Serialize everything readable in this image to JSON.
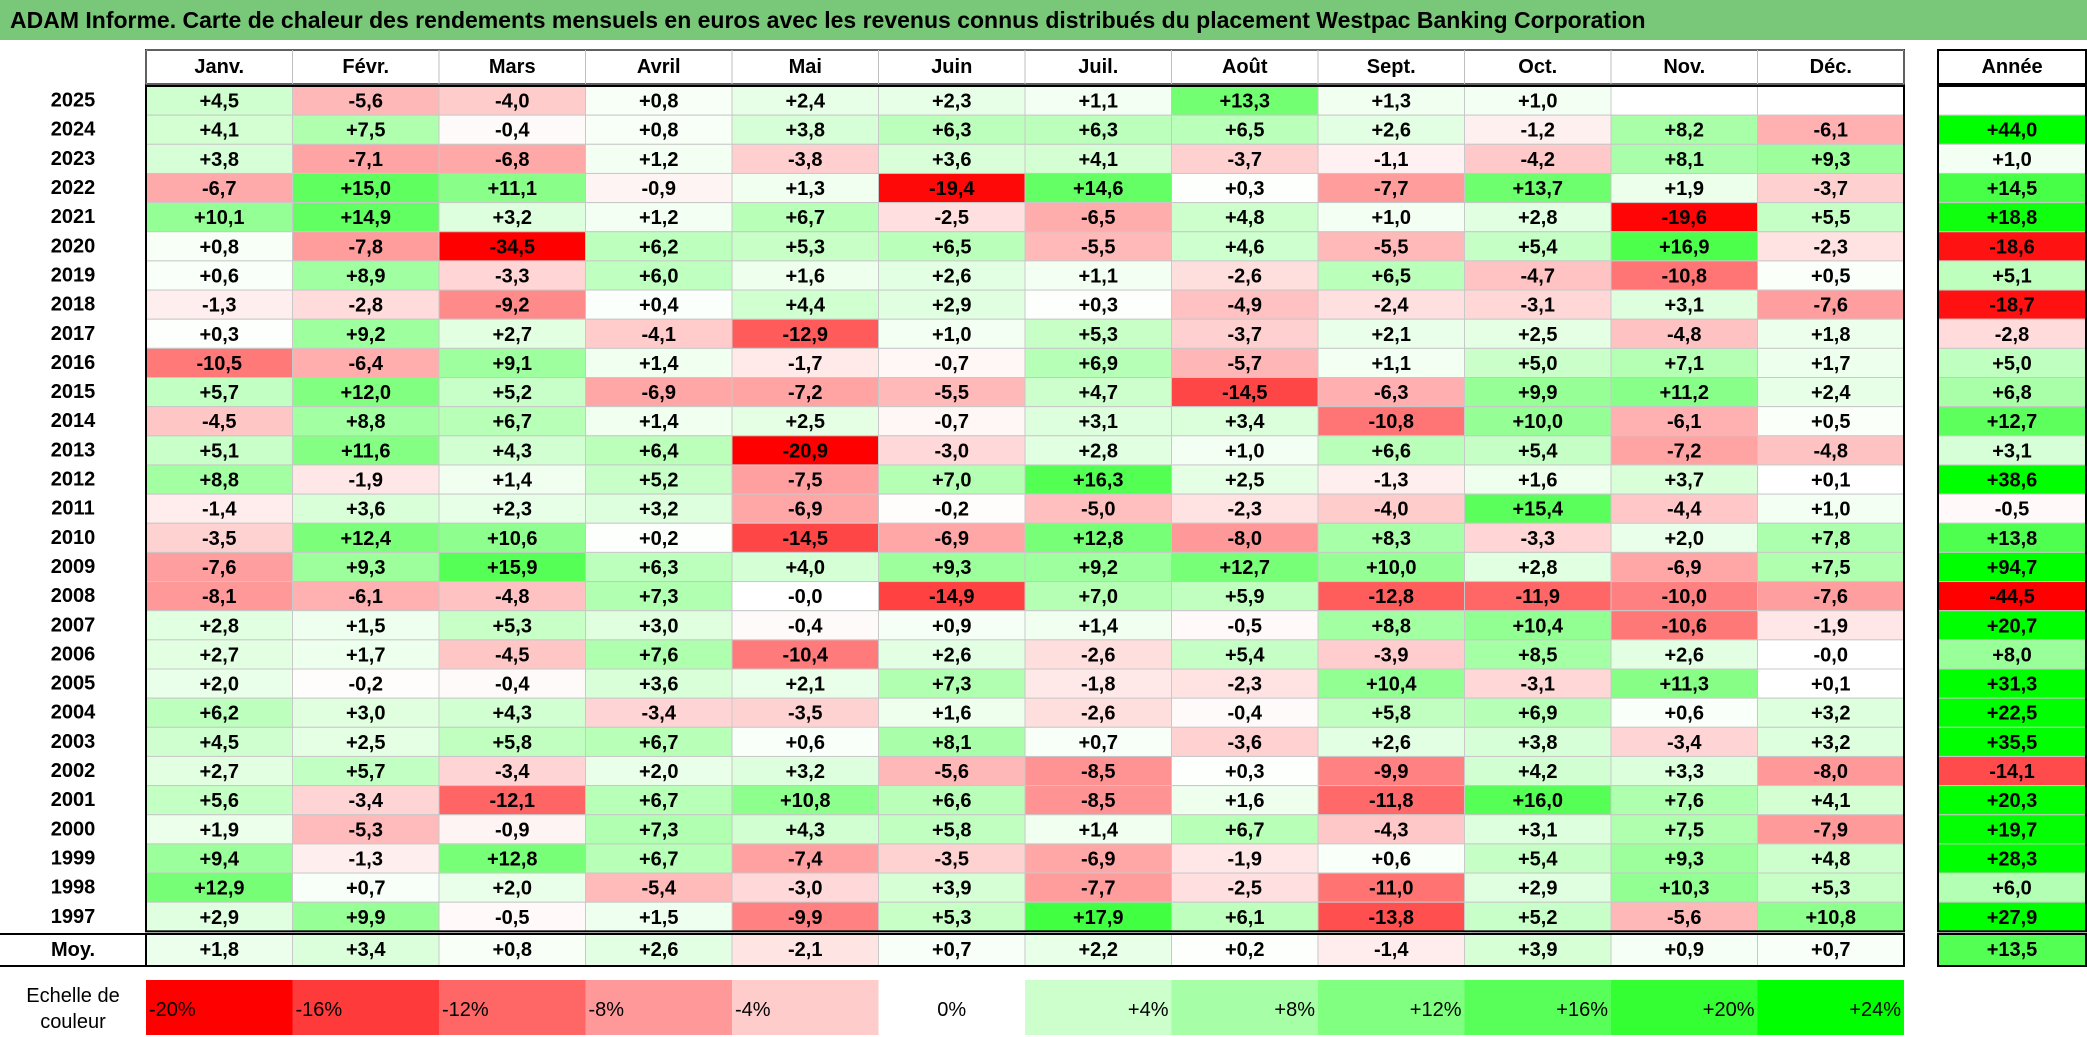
{
  "title": "ADAM Informe. Carte de chaleur des rendements mensuels en euros avec les revenus connus distribués du placement Westpac Banking Corporation",
  "chart_data": {
    "type": "heatmap",
    "columns": [
      "Janv.",
      "Févr.",
      "Mars",
      "Avril",
      "Mai",
      "Juin",
      "Juil.",
      "Août",
      "Sept.",
      "Oct.",
      "Nov.",
      "Déc."
    ],
    "annual_header": "Année",
    "rows": [
      {
        "year": "2025",
        "values": [
          "+4,5",
          "-5,6",
          "-4,0",
          "+0,8",
          "+2,4",
          "+2,3",
          "+1,1",
          "+13,3",
          "+1,3",
          "+1,0",
          "",
          ""
        ],
        "annual": ""
      },
      {
        "year": "2024",
        "values": [
          "+4,1",
          "+7,5",
          "-0,4",
          "+0,8",
          "+3,8",
          "+6,3",
          "+6,3",
          "+6,5",
          "+2,6",
          "-1,2",
          "+8,2",
          "-6,1"
        ],
        "annual": "+44,0"
      },
      {
        "year": "2023",
        "values": [
          "+3,8",
          "-7,1",
          "-6,8",
          "+1,2",
          "-3,8",
          "+3,6",
          "+4,1",
          "-3,7",
          "-1,1",
          "-4,2",
          "+8,1",
          "+9,3"
        ],
        "annual": "+1,0"
      },
      {
        "year": "2022",
        "values": [
          "-6,7",
          "+15,0",
          "+11,1",
          "-0,9",
          "+1,3",
          "-19,4",
          "+14,6",
          "+0,3",
          "-7,7",
          "+13,7",
          "+1,9",
          "-3,7"
        ],
        "annual": "+14,5"
      },
      {
        "year": "2021",
        "values": [
          "+10,1",
          "+14,9",
          "+3,2",
          "+1,2",
          "+6,7",
          "-2,5",
          "-6,5",
          "+4,8",
          "+1,0",
          "+2,8",
          "-19,6",
          "+5,5"
        ],
        "annual": "+18,8"
      },
      {
        "year": "2020",
        "values": [
          "+0,8",
          "-7,8",
          "-34,5",
          "+6,2",
          "+5,3",
          "+6,5",
          "-5,5",
          "+4,6",
          "-5,5",
          "+5,4",
          "+16,9",
          "-2,3"
        ],
        "annual": "-18,6"
      },
      {
        "year": "2019",
        "values": [
          "+0,6",
          "+8,9",
          "-3,3",
          "+6,0",
          "+1,6",
          "+2,6",
          "+1,1",
          "-2,6",
          "+6,5",
          "-4,7",
          "-10,8",
          "+0,5"
        ],
        "annual": "+5,1"
      },
      {
        "year": "2018",
        "values": [
          "-1,3",
          "-2,8",
          "-9,2",
          "+0,4",
          "+4,4",
          "+2,9",
          "+0,3",
          "-4,9",
          "-2,4",
          "-3,1",
          "+3,1",
          "-7,6"
        ],
        "annual": "-18,7"
      },
      {
        "year": "2017",
        "values": [
          "+0,3",
          "+9,2",
          "+2,7",
          "-4,1",
          "-12,9",
          "+1,0",
          "+5,3",
          "-3,7",
          "+2,1",
          "+2,5",
          "-4,8",
          "+1,8"
        ],
        "annual": "-2,8"
      },
      {
        "year": "2016",
        "values": [
          "-10,5",
          "-6,4",
          "+9,1",
          "+1,4",
          "-1,7",
          "-0,7",
          "+6,9",
          "-5,7",
          "+1,1",
          "+5,0",
          "+7,1",
          "+1,7"
        ],
        "annual": "+5,0"
      },
      {
        "year": "2015",
        "values": [
          "+5,7",
          "+12,0",
          "+5,2",
          "-6,9",
          "-7,2",
          "-5,5",
          "+4,7",
          "-14,5",
          "-6,3",
          "+9,9",
          "+11,2",
          "+2,4"
        ],
        "annual": "+6,8"
      },
      {
        "year": "2014",
        "values": [
          "-4,5",
          "+8,8",
          "+6,7",
          "+1,4",
          "+2,5",
          "-0,7",
          "+3,1",
          "+3,4",
          "-10,8",
          "+10,0",
          "-6,1",
          "+0,5"
        ],
        "annual": "+12,7"
      },
      {
        "year": "2013",
        "values": [
          "+5,1",
          "+11,6",
          "+4,3",
          "+6,4",
          "-20,9",
          "-3,0",
          "+2,8",
          "+1,0",
          "+6,6",
          "+5,4",
          "-7,2",
          "-4,8"
        ],
        "annual": "+3,1"
      },
      {
        "year": "2012",
        "values": [
          "+8,8",
          "-1,9",
          "+1,4",
          "+5,2",
          "-7,5",
          "+7,0",
          "+16,3",
          "+2,5",
          "-1,3",
          "+1,6",
          "+3,7",
          "+0,1"
        ],
        "annual": "+38,6"
      },
      {
        "year": "2011",
        "values": [
          "-1,4",
          "+3,6",
          "+2,3",
          "+3,2",
          "-6,9",
          "-0,2",
          "-5,0",
          "-2,3",
          "-4,0",
          "+15,4",
          "-4,4",
          "+1,0"
        ],
        "annual": "-0,5"
      },
      {
        "year": "2010",
        "values": [
          "-3,5",
          "+12,4",
          "+10,6",
          "+0,2",
          "-14,5",
          "-6,9",
          "+12,8",
          "-8,0",
          "+8,3",
          "-3,3",
          "+2,0",
          "+7,8"
        ],
        "annual": "+13,8"
      },
      {
        "year": "2009",
        "values": [
          "-7,6",
          "+9,3",
          "+15,9",
          "+6,3",
          "+4,0",
          "+9,3",
          "+9,2",
          "+12,7",
          "+10,0",
          "+2,8",
          "-6,9",
          "+7,5"
        ],
        "annual": "+94,7"
      },
      {
        "year": "2008",
        "values": [
          "-8,1",
          "-6,1",
          "-4,8",
          "+7,3",
          "-0,0",
          "-14,9",
          "+7,0",
          "+5,9",
          "-12,8",
          "-11,9",
          "-10,0",
          "-7,6"
        ],
        "annual": "-44,5"
      },
      {
        "year": "2007",
        "values": [
          "+2,8",
          "+1,5",
          "+5,3",
          "+3,0",
          "-0,4",
          "+0,9",
          "+1,4",
          "-0,5",
          "+8,8",
          "+10,4",
          "-10,6",
          "-1,9"
        ],
        "annual": "+20,7"
      },
      {
        "year": "2006",
        "values": [
          "+2,7",
          "+1,7",
          "-4,5",
          "+7,6",
          "-10,4",
          "+2,6",
          "-2,6",
          "+5,4",
          "-3,9",
          "+8,5",
          "+2,6",
          "-0,0"
        ],
        "annual": "+8,0"
      },
      {
        "year": "2005",
        "values": [
          "+2,0",
          "-0,2",
          "-0,4",
          "+3,6",
          "+2,1",
          "+7,3",
          "-1,8",
          "-2,3",
          "+10,4",
          "-3,1",
          "+11,3",
          "+0,1"
        ],
        "annual": "+31,3"
      },
      {
        "year": "2004",
        "values": [
          "+6,2",
          "+3,0",
          "+4,3",
          "-3,4",
          "-3,5",
          "+1,6",
          "-2,6",
          "-0,4",
          "+5,8",
          "+6,9",
          "+0,6",
          "+3,2"
        ],
        "annual": "+22,5"
      },
      {
        "year": "2003",
        "values": [
          "+4,5",
          "+2,5",
          "+5,8",
          "+6,7",
          "+0,6",
          "+8,1",
          "+0,7",
          "-3,6",
          "+2,6",
          "+3,8",
          "-3,4",
          "+3,2"
        ],
        "annual": "+35,5"
      },
      {
        "year": "2002",
        "values": [
          "+2,7",
          "+5,7",
          "-3,4",
          "+2,0",
          "+3,2",
          "-5,6",
          "-8,5",
          "+0,3",
          "-9,9",
          "+4,2",
          "+3,3",
          "-8,0"
        ],
        "annual": "-14,1"
      },
      {
        "year": "2001",
        "values": [
          "+5,6",
          "-3,4",
          "-12,1",
          "+6,7",
          "+10,8",
          "+6,6",
          "-8,5",
          "+1,6",
          "-11,8",
          "+16,0",
          "+7,6",
          "+4,1"
        ],
        "annual": "+20,3"
      },
      {
        "year": "2000",
        "values": [
          "+1,9",
          "-5,3",
          "-0,9",
          "+7,3",
          "+4,3",
          "+5,8",
          "+1,4",
          "+6,7",
          "-4,3",
          "+3,1",
          "+7,5",
          "-7,9"
        ],
        "annual": "+19,7"
      },
      {
        "year": "1999",
        "values": [
          "+9,4",
          "-1,3",
          "+12,8",
          "+6,7",
          "-7,4",
          "-3,5",
          "-6,9",
          "-1,9",
          "+0,6",
          "+5,4",
          "+9,3",
          "+4,8"
        ],
        "annual": "+28,3"
      },
      {
        "year": "1998",
        "values": [
          "+12,9",
          "+0,7",
          "+2,0",
          "-5,4",
          "-3,0",
          "+3,9",
          "-7,7",
          "-2,5",
          "-11,0",
          "+2,9",
          "+10,3",
          "+5,3"
        ],
        "annual": "+6,0"
      },
      {
        "year": "1997",
        "values": [
          "+2,9",
          "+9,9",
          "-0,5",
          "+1,5",
          "-9,9",
          "+5,3",
          "+17,9",
          "+6,1",
          "-13,8",
          "+5,2",
          "-5,6",
          "+10,8"
        ],
        "annual": "+27,9"
      }
    ],
    "average": {
      "label": "Moy.",
      "values": [
        "+1,8",
        "+3,4",
        "+0,8",
        "+2,6",
        "-2,1",
        "+0,7",
        "+2,2",
        "+0,2",
        "-1,4",
        "+3,9",
        "+0,9",
        "+0,7"
      ],
      "annual": "+13,5"
    },
    "color_scale": {
      "label": "Echelle de couleur",
      "stops": [
        {
          "label": "-20%",
          "value": -20,
          "color": "#ff0000"
        },
        {
          "label": "-16%",
          "value": -16,
          "color": "#ff3a3a"
        },
        {
          "label": "-12%",
          "value": -12,
          "color": "#ff6666"
        },
        {
          "label": "-8%",
          "value": -8,
          "color": "#ff9999"
        },
        {
          "label": "-4%",
          "value": -4,
          "color": "#ffcccc"
        },
        {
          "label": "0%",
          "value": 0,
          "color": "#ffffff"
        },
        {
          "label": "+4%",
          "value": 4,
          "color": "#ccffcc"
        },
        {
          "label": "+8%",
          "value": 8,
          "color": "#a6ffa6"
        },
        {
          "label": "+12%",
          "value": 12,
          "color": "#80ff80"
        },
        {
          "label": "+16%",
          "value": 16,
          "color": "#59ff59"
        },
        {
          "label": "+20%",
          "value": 20,
          "color": "#33ff33"
        },
        {
          "label": "+24%",
          "value": 24,
          "color": "#00ff00"
        }
      ]
    }
  }
}
